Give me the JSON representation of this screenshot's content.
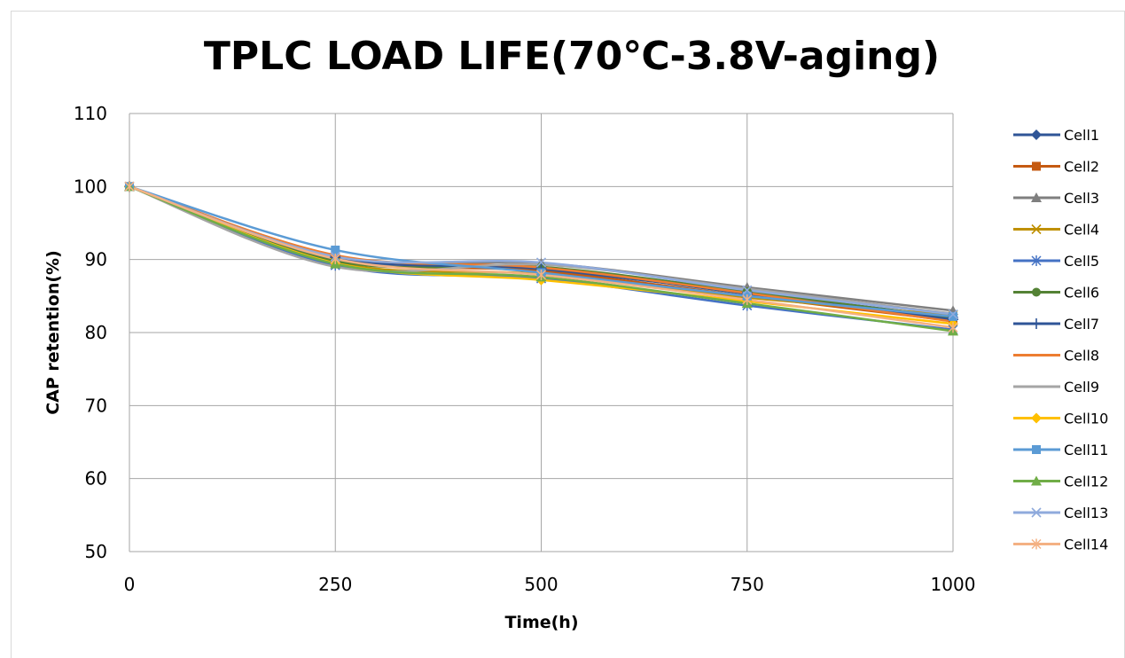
{
  "chart_data": {
    "type": "line",
    "title": "TPLC LOAD LIFE(70℃-3.8V-aging)",
    "xlabel": "Time(h)",
    "ylabel": "CAP retention(%)",
    "x": [
      0,
      250,
      500,
      750,
      1000
    ],
    "xticks": [
      "0",
      "250",
      "500",
      "750",
      "1000"
    ],
    "xlim": [
      0,
      1000
    ],
    "yticks": [
      "50",
      "60",
      "70",
      "80",
      "90",
      "100",
      "110"
    ],
    "ylim": [
      50,
      110
    ],
    "grid": true,
    "legend_position": "right",
    "series": [
      {
        "name": "Cell1",
        "color": "#2F5597",
        "marker": "diamond",
        "values": [
          100,
          90.5,
          88.6,
          85.5,
          82.1
        ]
      },
      {
        "name": "Cell2",
        "color": "#C55A11",
        "marker": "square",
        "values": [
          100,
          90.2,
          88.4,
          85.0,
          81.6
        ]
      },
      {
        "name": "Cell3",
        "color": "#7F7F7F",
        "marker": "triangle",
        "values": [
          100,
          90.0,
          89.5,
          86.2,
          83.0
        ]
      },
      {
        "name": "Cell4",
        "color": "#BF9000",
        "marker": "x",
        "values": [
          100,
          89.6,
          88.0,
          84.8,
          82.4
        ]
      },
      {
        "name": "Cell5",
        "color": "#4472C4",
        "marker": "star",
        "values": [
          100,
          89.2,
          87.4,
          83.7,
          80.4
        ]
      },
      {
        "name": "Cell6",
        "color": "#548235",
        "marker": "circle",
        "values": [
          100,
          89.8,
          89.0,
          85.6,
          82.0
        ]
      },
      {
        "name": "Cell7",
        "color": "#2F5597",
        "marker": "plus",
        "values": [
          100,
          90.3,
          88.8,
          85.3,
          81.8
        ]
      },
      {
        "name": "Cell8",
        "color": "#ED7D31",
        "marker": "none",
        "values": [
          100,
          90.6,
          88.9,
          85.4,
          81.5
        ]
      },
      {
        "name": "Cell9",
        "color": "#A5A5A5",
        "marker": "none",
        "values": [
          100,
          89.0,
          89.3,
          86.0,
          82.6
        ]
      },
      {
        "name": "Cell10",
        "color": "#FFC000",
        "marker": "diamond",
        "values": [
          100,
          89.5,
          87.2,
          84.3,
          81.2
        ]
      },
      {
        "name": "Cell11",
        "color": "#5B9BD5",
        "marker": "square",
        "values": [
          100,
          91.3,
          88.2,
          85.0,
          82.2
        ]
      },
      {
        "name": "Cell12",
        "color": "#70AD47",
        "marker": "triangle",
        "values": [
          100,
          89.4,
          87.6,
          84.0,
          80.2
        ]
      },
      {
        "name": "Cell13",
        "color": "#8FAADC",
        "marker": "x",
        "values": [
          100,
          90.4,
          89.6,
          85.8,
          82.5
        ]
      },
      {
        "name": "Cell14",
        "color": "#F4B183",
        "marker": "star",
        "values": [
          100,
          90.1,
          87.9,
          84.5,
          80.7
        ]
      }
    ]
  }
}
